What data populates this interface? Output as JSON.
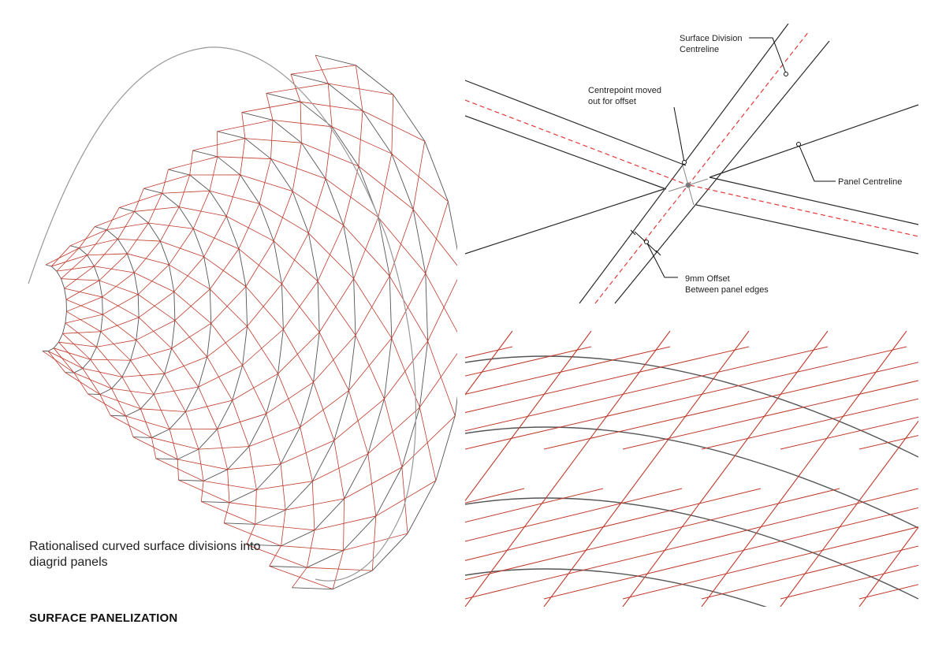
{
  "title": "SURFACE PANELIZATION",
  "caption": "Rationalised curved surface divisions into diagrid panels",
  "annotations": {
    "surface_division": "Surface Division\nCentreline",
    "centrepoint": "Centrepoint moved\nout for offset",
    "panel_centreline": "Panel Centreline",
    "offset": "9mm Offset\nBetween panel edges"
  },
  "colors": {
    "panel_edge": "#c0392b",
    "frame_edge": "#555555",
    "centreline": "#e03a3a",
    "detail_line": "#2a2a2a"
  }
}
